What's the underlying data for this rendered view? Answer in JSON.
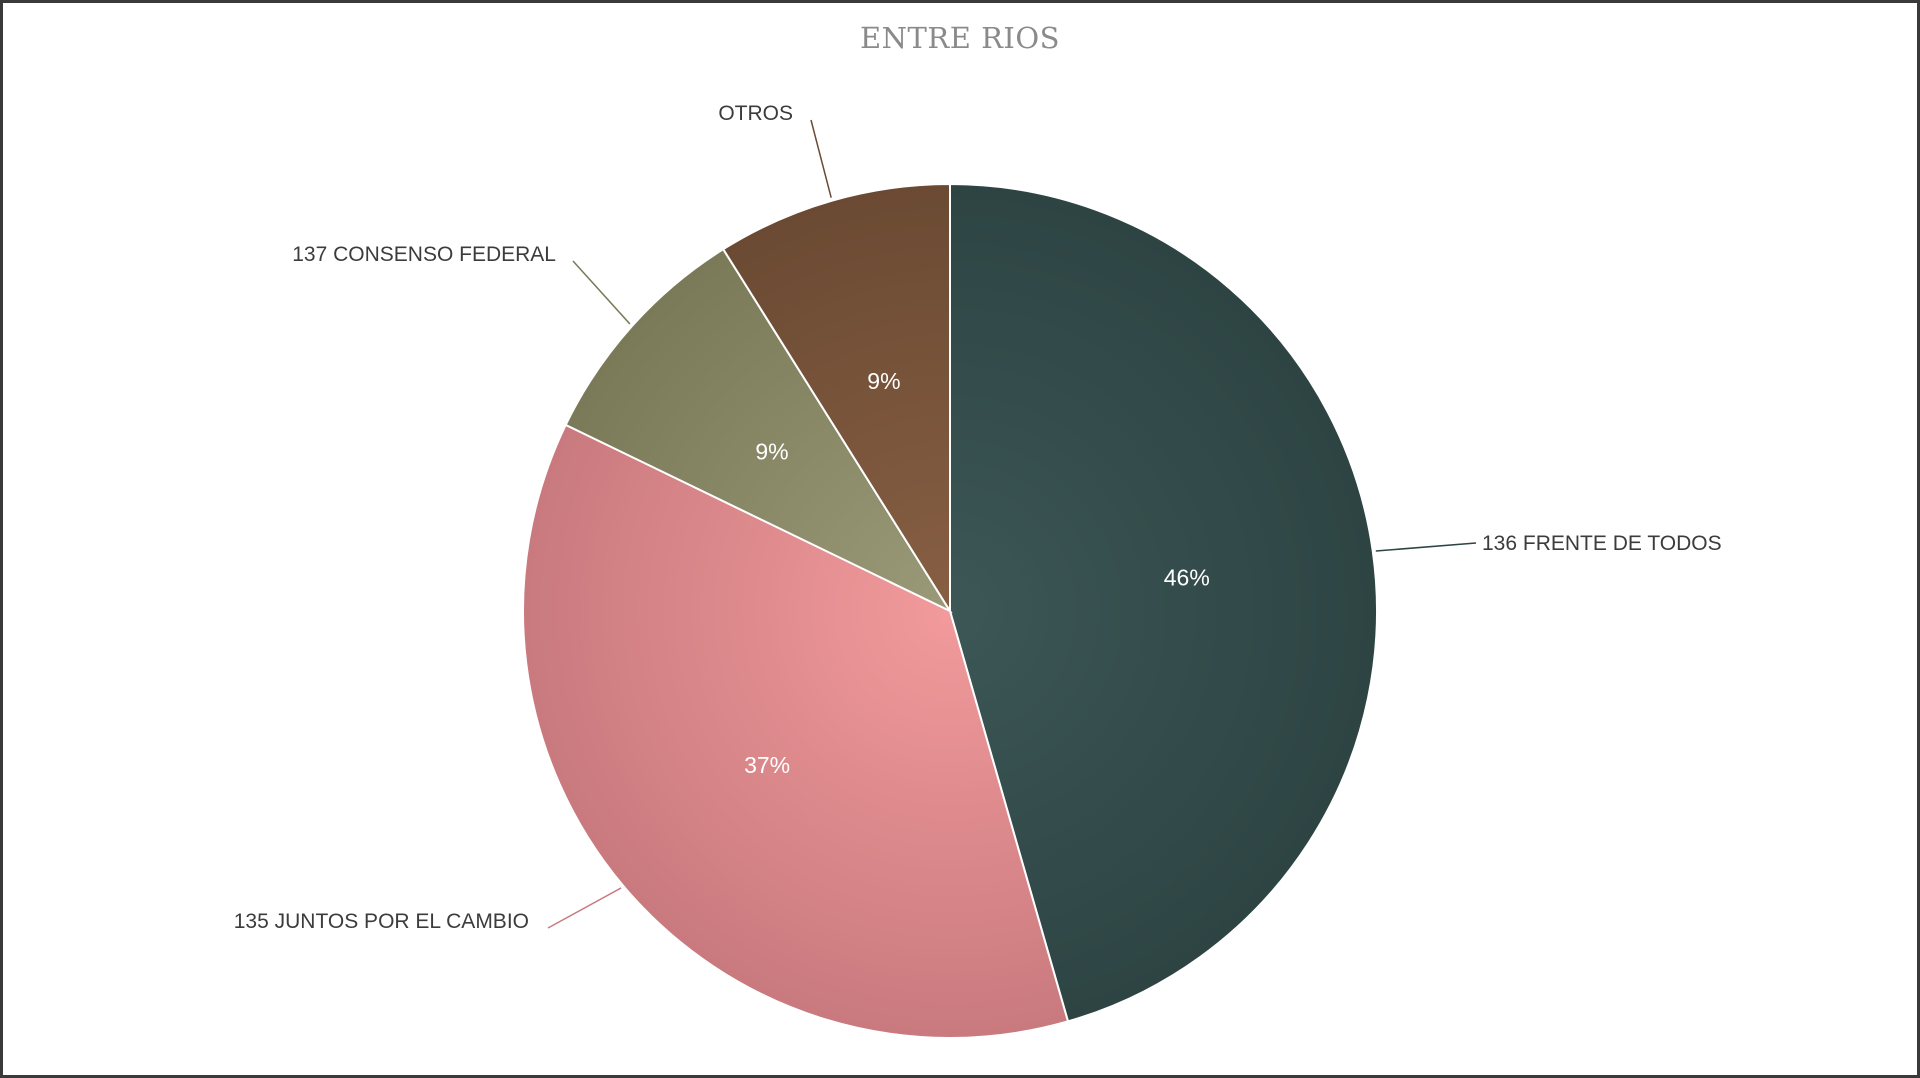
{
  "chart_data": {
    "type": "pie",
    "title": "ENTRE RIOS",
    "slices": [
      {
        "label": "136 FRENTE DE TODOS",
        "value": 46,
        "display": "46%",
        "color_dark": "#2d4443",
        "color_light": "#3c5756"
      },
      {
        "label": "135 JUNTOS POR EL CAMBIO",
        "value": 37,
        "display": "37%",
        "color_dark": "#c97a7e",
        "color_light": "#f29a9c"
      },
      {
        "label": "137 CONSENSO FEDERAL",
        "value": 9,
        "display": "9%",
        "color_dark": "#7a7a58",
        "color_light": "#9a9a78"
      },
      {
        "label": "OTROS",
        "value": 9,
        "display": "9%",
        "color_dark": "#6b4a33",
        "color_light": "#875f43"
      }
    ],
    "legend": "none",
    "label_position": "outside-with-leader-lines"
  }
}
